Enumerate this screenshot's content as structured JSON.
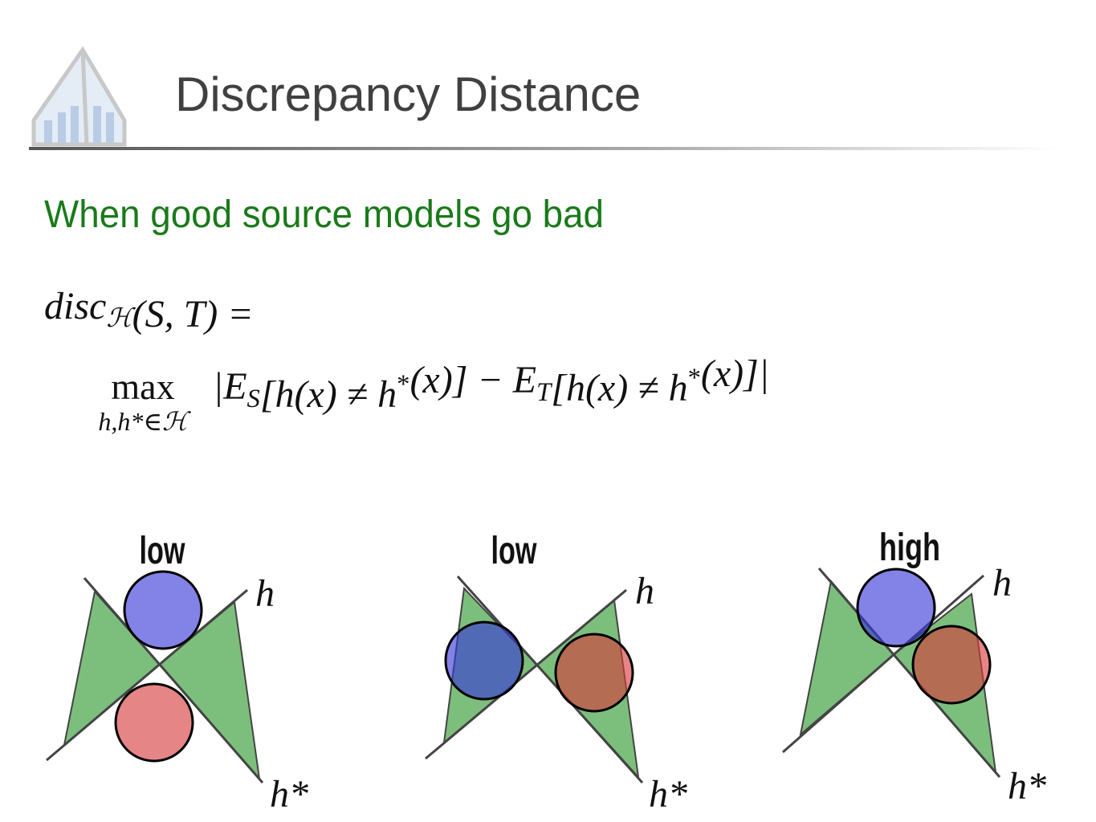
{
  "header": {
    "title": "Discrepancy Distance"
  },
  "subtitle": "When good source models go bad",
  "formula": {
    "line1": [
      {
        "t": "disc"
      },
      {
        "sub": "ℋ"
      },
      {
        "t": "(S, T) ="
      }
    ],
    "op": {
      "t": "max",
      "sub": "h,h*∈ℋ"
    },
    "line2": [
      {
        "t": "|E"
      },
      {
        "sub": "S"
      },
      {
        "t": "[h(x) ≠ h"
      },
      {
        "sup": "*"
      },
      {
        "t": "(x)] − E"
      },
      {
        "sub": "T"
      },
      {
        "t": "[h(x) ≠ h"
      },
      {
        "sup": "*"
      },
      {
        "t": "(x)]|"
      }
    ]
  },
  "panels": [
    {
      "label": "low",
      "h": "h",
      "hstar": "h*"
    },
    {
      "label": "low",
      "h": "h",
      "hstar": "h*"
    },
    {
      "label": "high",
      "h": "h",
      "hstar": "h*"
    }
  ]
}
